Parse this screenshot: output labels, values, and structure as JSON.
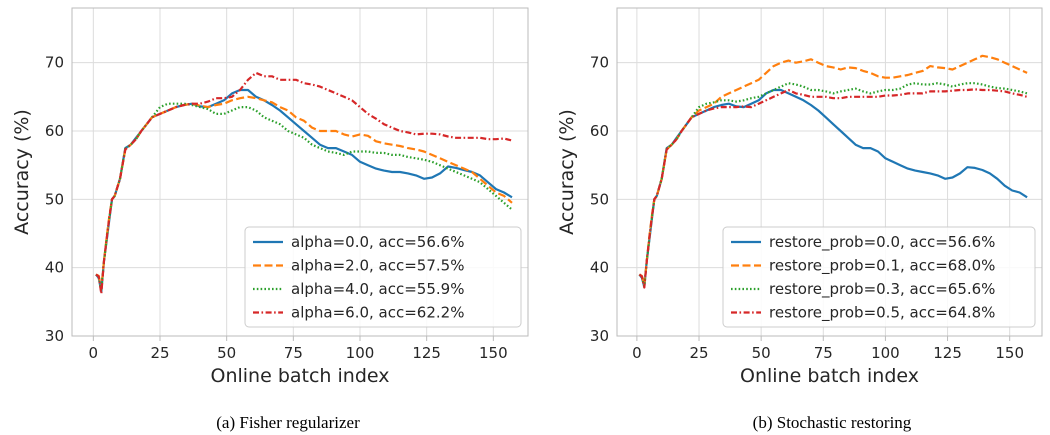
{
  "chart_data": [
    {
      "type": "line",
      "caption": "(a) Fisher regularizer",
      "xlabel": "Online batch index",
      "ylabel": "Accuracy (%)",
      "xlim": [
        -8,
        163
      ],
      "ylim": [
        30,
        78
      ],
      "xticks": [
        0,
        25,
        50,
        75,
        100,
        125,
        150
      ],
      "yticks": [
        30,
        40,
        50,
        60,
        70
      ],
      "grid": true,
      "legend_position": "lower-right",
      "series": [
        {
          "name": "alpha=0.0, acc=56.6%",
          "color": "#1f77b4",
          "dash": "solid",
          "x": [
            1,
            2,
            3,
            4,
            5,
            6,
            7,
            8,
            10,
            12,
            14,
            16,
            18,
            20,
            22,
            25,
            28,
            31,
            34,
            37,
            40,
            43,
            46,
            49,
            52,
            55,
            58,
            61,
            64,
            67,
            70,
            73,
            76,
            79,
            82,
            85,
            88,
            91,
            94,
            97,
            100,
            103,
            106,
            109,
            112,
            115,
            118,
            121,
            124,
            127,
            130,
            133,
            136,
            139,
            142,
            145,
            148,
            151,
            154,
            157
          ],
          "y": [
            39,
            38.5,
            36.5,
            41,
            44,
            47,
            50,
            50.5,
            53,
            57.5,
            58,
            59,
            60,
            61,
            62,
            62.5,
            63,
            63.5,
            63.8,
            64,
            63.6,
            63.5,
            64,
            64.5,
            65.5,
            66,
            66,
            65,
            64.5,
            63.8,
            63,
            62,
            61,
            60,
            59,
            58,
            57.5,
            57.5,
            57,
            56.5,
            55.5,
            55,
            54.5,
            54.2,
            54,
            54,
            53.8,
            53.5,
            53,
            53.2,
            53.8,
            54.8,
            54.6,
            54.3,
            54,
            53.5,
            52.5,
            51.5,
            51,
            50.3
          ]
        },
        {
          "name": "alpha=2.0, acc=57.5%",
          "color": "#ff7f0e",
          "dash": "dashed",
          "x": [
            1,
            2,
            3,
            4,
            5,
            6,
            7,
            8,
            10,
            12,
            14,
            16,
            18,
            20,
            22,
            25,
            28,
            31,
            34,
            37,
            40,
            43,
            46,
            49,
            52,
            55,
            58,
            61,
            64,
            67,
            70,
            73,
            76,
            79,
            82,
            85,
            88,
            91,
            94,
            97,
            100,
            103,
            106,
            109,
            112,
            115,
            118,
            121,
            124,
            127,
            130,
            133,
            136,
            139,
            142,
            145,
            148,
            151,
            154,
            157
          ],
          "y": [
            39,
            38.8,
            37,
            41,
            44.5,
            47.5,
            50,
            50.5,
            53,
            57.3,
            58,
            58.8,
            60,
            61,
            62,
            62.5,
            63,
            63.5,
            63.8,
            64,
            63.7,
            63.5,
            63.8,
            64,
            64.5,
            64.8,
            65,
            64.8,
            64.5,
            64.2,
            63.5,
            63,
            62,
            61.5,
            60.5,
            60,
            60,
            60,
            59.5,
            59.2,
            59.5,
            59.3,
            58.5,
            58.2,
            58,
            57.8,
            57.5,
            57.3,
            57,
            56.5,
            56,
            55.5,
            55,
            54.5,
            54,
            53,
            52,
            51,
            50.5,
            49.5
          ]
        },
        {
          "name": "alpha=4.0, acc=55.9%",
          "color": "#2ca02c",
          "dash": "dotted",
          "x": [
            1,
            2,
            3,
            4,
            5,
            6,
            7,
            8,
            10,
            12,
            14,
            16,
            18,
            20,
            22,
            25,
            28,
            31,
            34,
            37,
            40,
            43,
            46,
            49,
            52,
            55,
            58,
            61,
            64,
            67,
            70,
            73,
            76,
            79,
            82,
            85,
            88,
            91,
            94,
            97,
            100,
            103,
            106,
            109,
            112,
            115,
            118,
            121,
            124,
            127,
            130,
            133,
            136,
            139,
            142,
            145,
            148,
            151,
            154,
            157
          ],
          "y": [
            39,
            38.6,
            36.8,
            41,
            44.2,
            47.2,
            50,
            50.5,
            53,
            57.4,
            58,
            58.8,
            60,
            61,
            62,
            63.5,
            64,
            64,
            64,
            63.8,
            63.5,
            63.2,
            62.5,
            62.5,
            63,
            63.5,
            63.5,
            63,
            62,
            61.5,
            61,
            60,
            59.5,
            59,
            58,
            57.5,
            57,
            56.8,
            56.5,
            57,
            57,
            57,
            56.8,
            56.8,
            56.5,
            56.5,
            56.2,
            56,
            55.8,
            55.5,
            55,
            54.5,
            54,
            53.5,
            53,
            52.5,
            51.5,
            50.5,
            49.5,
            48.5
          ]
        },
        {
          "name": "alpha=6.0, acc=62.2%",
          "color": "#d62728",
          "dash": "dashdot",
          "x": [
            1,
            2,
            3,
            4,
            5,
            6,
            7,
            8,
            10,
            12,
            14,
            16,
            18,
            20,
            22,
            25,
            28,
            31,
            34,
            37,
            40,
            43,
            46,
            49,
            52,
            55,
            58,
            61,
            64,
            67,
            70,
            73,
            76,
            79,
            82,
            85,
            88,
            91,
            94,
            97,
            100,
            103,
            106,
            109,
            112,
            115,
            118,
            121,
            124,
            127,
            130,
            133,
            136,
            139,
            142,
            145,
            148,
            151,
            154,
            157
          ],
          "y": [
            39,
            38.7,
            36.2,
            41,
            44.3,
            47.3,
            50,
            50.5,
            53,
            57.3,
            58,
            58.8,
            60,
            61,
            62,
            62.5,
            63,
            63.5,
            63.8,
            64,
            64,
            64.3,
            64.8,
            64.8,
            65,
            66,
            67.5,
            68.5,
            68,
            68,
            67.5,
            67.5,
            67.5,
            67,
            66.8,
            66.5,
            66,
            65.5,
            65,
            64.5,
            63.5,
            62.5,
            61.8,
            61,
            60.5,
            60,
            59.8,
            59.5,
            59.6,
            59.6,
            59.5,
            59.2,
            59,
            59,
            59,
            59,
            58.8,
            58.8,
            58.9,
            58.6
          ]
        }
      ]
    },
    {
      "type": "line",
      "caption": "(b) Stochastic restoring",
      "xlabel": "Online batch index",
      "ylabel": "Accuracy (%)",
      "xlim": [
        -8,
        163
      ],
      "ylim": [
        30,
        78
      ],
      "xticks": [
        0,
        25,
        50,
        75,
        100,
        125,
        150
      ],
      "yticks": [
        30,
        40,
        50,
        60,
        70
      ],
      "grid": true,
      "legend_position": "lower-right",
      "series": [
        {
          "name": "restore_prob=0.0, acc=56.6%",
          "color": "#1f77b4",
          "dash": "solid",
          "x": [
            1,
            2,
            3,
            4,
            5,
            6,
            7,
            8,
            10,
            12,
            14,
            16,
            18,
            20,
            22,
            25,
            28,
            31,
            34,
            37,
            40,
            43,
            46,
            49,
            52,
            55,
            58,
            61,
            64,
            67,
            70,
            73,
            76,
            79,
            82,
            85,
            88,
            91,
            94,
            97,
            100,
            103,
            106,
            109,
            112,
            115,
            118,
            121,
            124,
            127,
            130,
            133,
            136,
            139,
            142,
            145,
            148,
            151,
            154,
            157
          ],
          "y": [
            39,
            38.5,
            37.2,
            41,
            44,
            47,
            50,
            50.5,
            53,
            57.5,
            58,
            59,
            60,
            61,
            62,
            62.5,
            63,
            63.5,
            63.8,
            64,
            63.6,
            63.5,
            64,
            64.5,
            65.5,
            66,
            66,
            65.5,
            65,
            64.5,
            63.8,
            63,
            62,
            61,
            60,
            59,
            58,
            57.5,
            57.5,
            57,
            56,
            55.5,
            55,
            54.5,
            54.2,
            54,
            53.8,
            53.5,
            53,
            53.2,
            53.8,
            54.7,
            54.6,
            54.3,
            53.8,
            53,
            52,
            51.3,
            51,
            50.3
          ]
        },
        {
          "name": "restore_prob=0.1, acc=68.0%",
          "color": "#ff7f0e",
          "dash": "dashed",
          "x": [
            1,
            2,
            3,
            4,
            5,
            6,
            7,
            8,
            10,
            12,
            14,
            16,
            18,
            20,
            22,
            25,
            28,
            31,
            34,
            37,
            40,
            43,
            46,
            49,
            52,
            55,
            58,
            61,
            64,
            67,
            70,
            73,
            76,
            79,
            82,
            85,
            88,
            91,
            94,
            97,
            100,
            103,
            106,
            109,
            112,
            115,
            118,
            121,
            124,
            127,
            130,
            133,
            136,
            139,
            142,
            145,
            148,
            151,
            154,
            157
          ],
          "y": [
            39,
            38.8,
            37.5,
            41,
            44.5,
            47.5,
            50,
            50.5,
            53,
            57.3,
            58,
            58.8,
            60,
            61,
            62,
            63,
            63.5,
            64,
            65,
            65.5,
            66,
            66.5,
            67,
            67.5,
            68.5,
            69.5,
            70,
            70.3,
            70,
            70.2,
            70.5,
            70,
            69.5,
            69.3,
            69,
            69.3,
            69.2,
            68.8,
            68.5,
            68,
            67.8,
            67.8,
            68,
            68.2,
            68.5,
            68.8,
            69.5,
            69.3,
            69.2,
            69,
            69.5,
            70,
            70.5,
            71,
            70.8,
            70.5,
            70,
            69.5,
            69,
            68.5
          ]
        },
        {
          "name": "restore_prob=0.3, acc=65.6%",
          "color": "#2ca02c",
          "dash": "dotted",
          "x": [
            1,
            2,
            3,
            4,
            5,
            6,
            7,
            8,
            10,
            12,
            14,
            16,
            18,
            20,
            22,
            25,
            28,
            31,
            34,
            37,
            40,
            43,
            46,
            49,
            52,
            55,
            58,
            61,
            64,
            67,
            70,
            73,
            76,
            79,
            82,
            85,
            88,
            91,
            94,
            97,
            100,
            103,
            106,
            109,
            112,
            115,
            118,
            121,
            124,
            127,
            130,
            133,
            136,
            139,
            142,
            145,
            148,
            151,
            154,
            157
          ],
          "y": [
            39,
            38.6,
            37.3,
            41,
            44.2,
            47.2,
            50,
            50.5,
            53,
            57.4,
            58,
            58.8,
            60,
            61,
            62,
            63.5,
            64,
            64.2,
            64.5,
            64.5,
            64.3,
            64.5,
            64.8,
            65,
            65.5,
            66,
            66.5,
            67,
            66.8,
            66.5,
            66,
            66,
            65.8,
            65.5,
            65.8,
            66,
            66.2,
            65.8,
            65.5,
            65.8,
            66,
            66,
            66.2,
            66.8,
            67,
            66.8,
            66.8,
            67,
            66.8,
            66.5,
            66.8,
            67,
            67,
            66.8,
            66.5,
            66.3,
            66.2,
            66,
            65.8,
            65.5
          ]
        },
        {
          "name": "restore_prob=0.5, acc=64.8%",
          "color": "#d62728",
          "dash": "dashdot",
          "x": [
            1,
            2,
            3,
            4,
            5,
            6,
            7,
            8,
            10,
            12,
            14,
            16,
            18,
            20,
            22,
            25,
            28,
            31,
            34,
            37,
            40,
            43,
            46,
            49,
            52,
            55,
            58,
            61,
            64,
            67,
            70,
            73,
            76,
            79,
            82,
            85,
            88,
            91,
            94,
            97,
            100,
            103,
            106,
            109,
            112,
            115,
            118,
            121,
            124,
            127,
            130,
            133,
            136,
            139,
            142,
            145,
            148,
            151,
            154,
            157
          ],
          "y": [
            39,
            38.7,
            37.1,
            41,
            44.3,
            47.3,
            50,
            50.5,
            53,
            57.3,
            58,
            58.8,
            60,
            61,
            62,
            62.5,
            63,
            63.3,
            63.5,
            63.5,
            63.5,
            63.6,
            63.5,
            64,
            64.5,
            65,
            65.5,
            66,
            65.5,
            65.3,
            65,
            65,
            65,
            64.8,
            64.8,
            65,
            65,
            65,
            65,
            65,
            65.2,
            65.2,
            65.3,
            65.5,
            65.5,
            65.5,
            65.8,
            65.8,
            65.8,
            65.9,
            66,
            66,
            66.1,
            66,
            66,
            65.9,
            65.8,
            65.5,
            65.3,
            65
          ]
        }
      ]
    }
  ]
}
